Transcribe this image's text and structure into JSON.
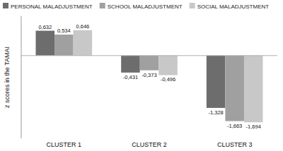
{
  "chart_data": {
    "type": "bar",
    "y_label": "z scores in the TAMAI",
    "categories": [
      "CLUSTER 1",
      "CLUSTER 2",
      "CLUSTER 3"
    ],
    "series": [
      {
        "name": "PERSONAL MALADJUSTMENT",
        "color": "#6d6d6d",
        "values": [
          0.632,
          -0.431,
          -1.328
        ],
        "value_labels": [
          "0,632",
          "-0,431",
          "-1,328"
        ]
      },
      {
        "name": "SCHOOL MALADJUSTMENT",
        "color": "#a0a0a0",
        "values": [
          0.534,
          -0.373,
          -1.663
        ],
        "value_labels": [
          "0,534",
          "-0,373",
          "-1,663"
        ]
      },
      {
        "name": "SOCIAL MALADJUSTMENT",
        "color": "#c8c8c8",
        "values": [
          0.646,
          -0.496,
          -1.694
        ],
        "value_labels": [
          "0,646",
          "-0,496",
          "-1,694"
        ]
      }
    ],
    "ylim": [
      -2.1,
      1.0
    ],
    "tick_labels": false,
    "grid": false,
    "legend": "upper left",
    "data_labels": true
  }
}
